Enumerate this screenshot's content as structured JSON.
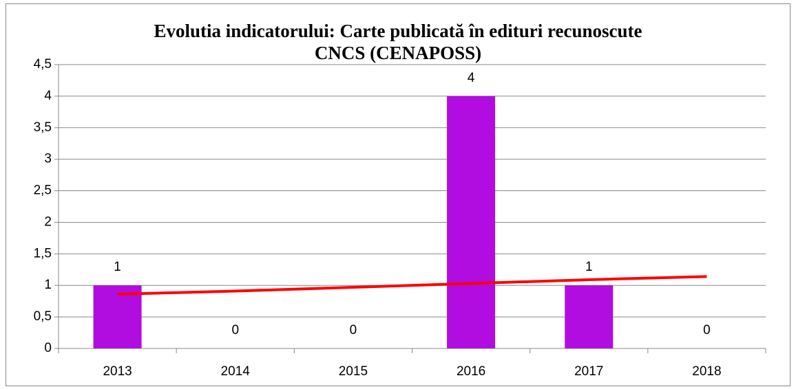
{
  "chart_data": {
    "type": "bar",
    "title": [
      "Evolutia indicatorului: Carte publicată în edituri recunoscute",
      "CNCS (CENAPOSS)"
    ],
    "categories": [
      "2013",
      "2014",
      "2015",
      "2016",
      "2017",
      "2018"
    ],
    "values": [
      1,
      0,
      0,
      4,
      1,
      0
    ],
    "color": "#b10de0",
    "trendline": {
      "color": "#ff0000",
      "values": [
        0.86,
        0.91,
        0.97,
        1.03,
        1.09,
        1.14
      ]
    },
    "ylim": [
      0,
      4.5
    ],
    "yticks": [
      0,
      {
        "value": 0.5,
        "label": "0,5"
      },
      1,
      {
        "value": 1.5,
        "label": "1,5"
      },
      2,
      {
        "value": 2.5,
        "label": "2,5"
      },
      3,
      {
        "value": 3.5,
        "label": "3,5"
      },
      4,
      {
        "value": 4.5,
        "label": "4,5"
      }
    ],
    "grid": true
  }
}
